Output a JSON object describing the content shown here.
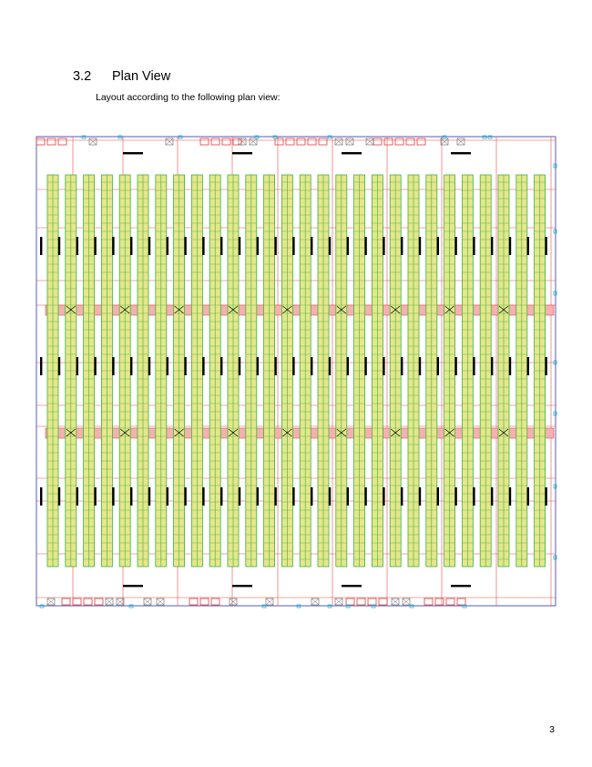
{
  "section": {
    "number": "3.2",
    "title": "Plan View",
    "intro": "Layout according to the following plan view:"
  },
  "plan": {
    "rack_rows_top": 1,
    "colors": {
      "rack_outline": "#3cb43c",
      "rack_fill": "#e6e68c",
      "red_line": "#e85050",
      "cross_aisle": "#f5b0b0",
      "border": "#5b5bb0",
      "cyan_mark": "#22b8d8",
      "black_bar": "#000000",
      "dock_doors": "#e04040"
    }
  },
  "footer": {
    "page_number": "3"
  }
}
